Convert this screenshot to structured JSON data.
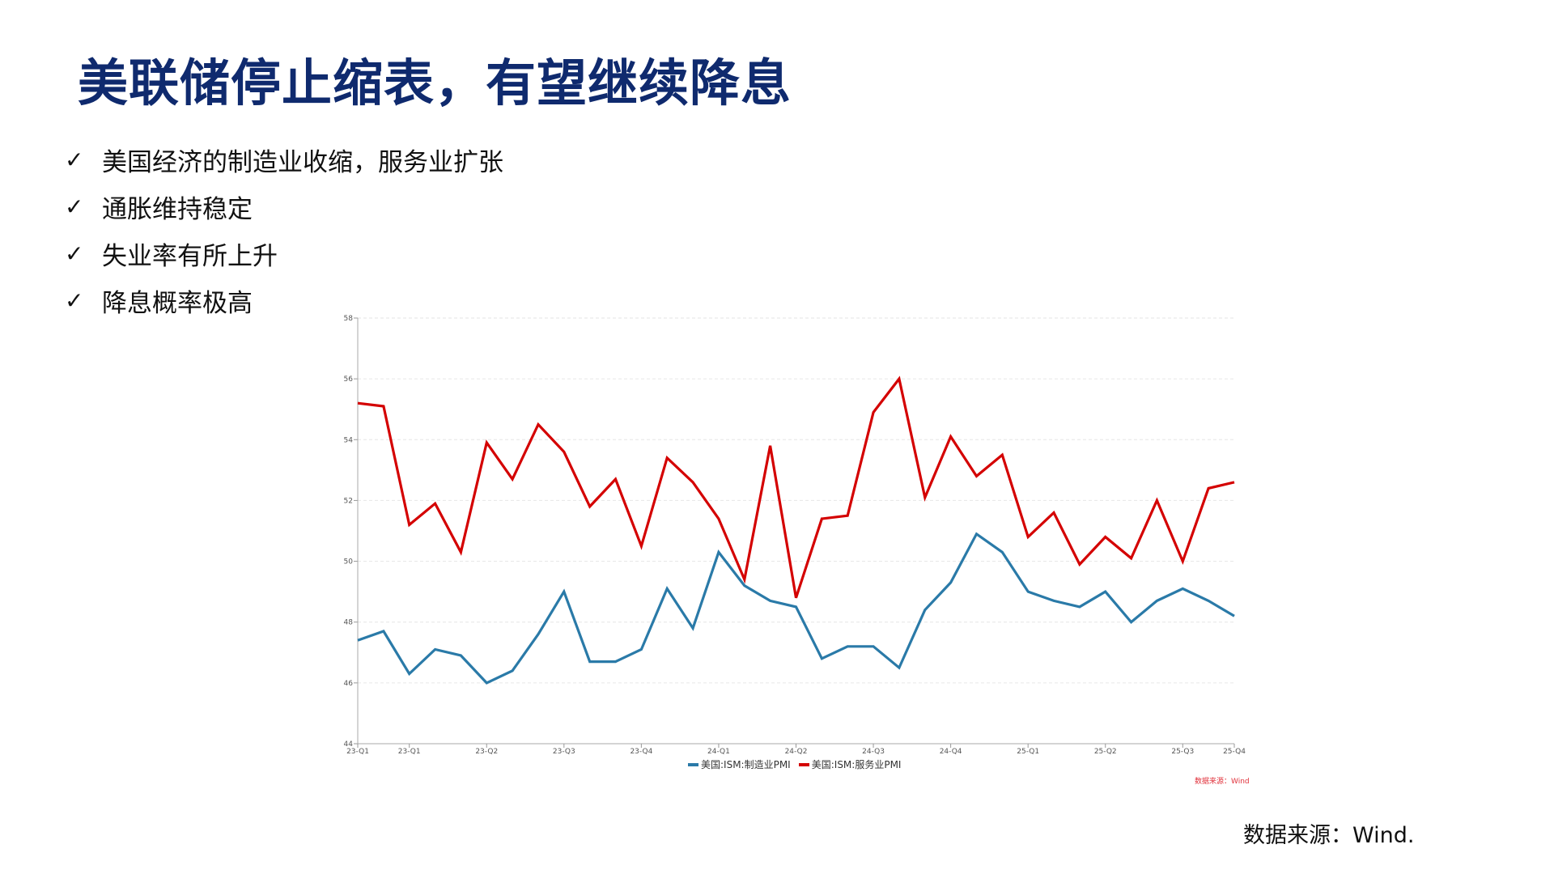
{
  "title": "美联储停止缩表，有望继续降息",
  "bullets": [
    {
      "icon": "check-icon",
      "mark": "✓",
      "text": "美国经济的制造业收缩，服务业扩张"
    },
    {
      "icon": "check-icon",
      "mark": "✓",
      "text": "通胀维持稳定"
    },
    {
      "icon": "check-icon",
      "mark": "✓",
      "text": "失业率有所上升"
    },
    {
      "icon": "check-icon",
      "mark": "✓",
      "text": "降息概率极高"
    }
  ],
  "chart_data": {
    "type": "line",
    "title": "",
    "xlabel": "",
    "ylabel": "",
    "ylim": [
      44,
      58
    ],
    "yticks": [
      44,
      46,
      48,
      50,
      52,
      54,
      56,
      58
    ],
    "xticks": [
      {
        "index": 0,
        "label": "23-Q1"
      },
      {
        "index": 2,
        "label": "23-Q1"
      },
      {
        "index": 5,
        "label": "23-Q2"
      },
      {
        "index": 8,
        "label": "23-Q3"
      },
      {
        "index": 11,
        "label": "23-Q4"
      },
      {
        "index": 14,
        "label": "24-Q1"
      },
      {
        "index": 17,
        "label": "24-Q2"
      },
      {
        "index": 20,
        "label": "24-Q3"
      },
      {
        "index": 23,
        "label": "24-Q4"
      },
      {
        "index": 26,
        "label": "25-Q1"
      },
      {
        "index": 29,
        "label": "25-Q2"
      },
      {
        "index": 32,
        "label": "25-Q3"
      },
      {
        "index": 34,
        "label": "25-Q4"
      }
    ],
    "grid": true,
    "legend_position": "bottom-center",
    "series": [
      {
        "name": "美国:ISM:制造业PMI",
        "color": "#2a7aa8",
        "values": [
          47.4,
          47.7,
          46.3,
          47.1,
          46.9,
          46.0,
          46.4,
          47.6,
          49.0,
          46.7,
          46.7,
          47.1,
          49.1,
          47.8,
          50.3,
          49.2,
          48.7,
          48.5,
          46.8,
          47.2,
          47.2,
          46.5,
          48.4,
          49.3,
          50.9,
          50.3,
          49.0,
          48.7,
          48.5,
          49.0,
          48.0,
          48.7,
          49.1,
          48.7,
          48.2
        ]
      },
      {
        "name": "美国:ISM:服务业PMI",
        "color": "#d40000",
        "values": [
          55.2,
          55.1,
          51.2,
          51.9,
          50.3,
          53.9,
          52.7,
          54.5,
          53.6,
          51.8,
          52.7,
          50.5,
          53.4,
          52.6,
          51.4,
          49.4,
          53.8,
          48.8,
          51.4,
          51.5,
          54.9,
          56.0,
          52.1,
          54.1,
          52.8,
          53.5,
          50.8,
          51.6,
          49.9,
          50.8,
          50.1,
          52.0,
          50.0,
          52.4,
          52.6
        ]
      }
    ],
    "chart_source": "数据来源：Wind"
  },
  "source": "数据来源：Wind."
}
